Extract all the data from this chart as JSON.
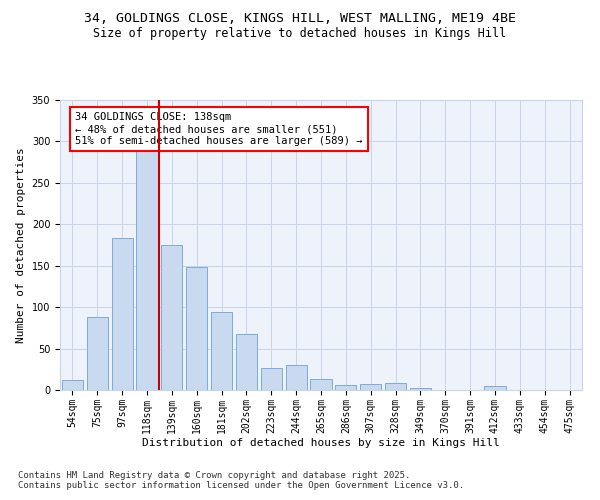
{
  "title_line1": "34, GOLDINGS CLOSE, KINGS HILL, WEST MALLING, ME19 4BE",
  "title_line2": "Size of property relative to detached houses in Kings Hill",
  "xlabel": "Distribution of detached houses by size in Kings Hill",
  "ylabel": "Number of detached properties",
  "categories": [
    "54sqm",
    "75sqm",
    "97sqm",
    "118sqm",
    "139sqm",
    "160sqm",
    "181sqm",
    "202sqm",
    "223sqm",
    "244sqm",
    "265sqm",
    "286sqm",
    "307sqm",
    "328sqm",
    "349sqm",
    "370sqm",
    "391sqm",
    "412sqm",
    "433sqm",
    "454sqm",
    "475sqm"
  ],
  "values": [
    12,
    88,
    184,
    290,
    175,
    148,
    94,
    68,
    26,
    30,
    13,
    6,
    7,
    8,
    3,
    0,
    0,
    5,
    0,
    0,
    0
  ],
  "bar_color": "#c9d9f0",
  "bar_edge_color": "#7aaddb",
  "vline_x": 3.5,
  "vline_color": "#cc0000",
  "annotation_text": "34 GOLDINGS CLOSE: 138sqm\n← 48% of detached houses are smaller (551)\n51% of semi-detached houses are larger (589) →",
  "ylim": [
    0,
    350
  ],
  "yticks": [
    0,
    50,
    100,
    150,
    200,
    250,
    300,
    350
  ],
  "grid_color": "#c8d4e8",
  "background_color": "#eef2fa",
  "footnote": "Contains HM Land Registry data © Crown copyright and database right 2025.\nContains public sector information licensed under the Open Government Licence v3.0.",
  "title_fontsize": 9.5,
  "subtitle_fontsize": 8.5,
  "xlabel_fontsize": 8,
  "ylabel_fontsize": 8,
  "tick_fontsize": 7,
  "annotation_fontsize": 7.5,
  "footnote_fontsize": 6.5
}
